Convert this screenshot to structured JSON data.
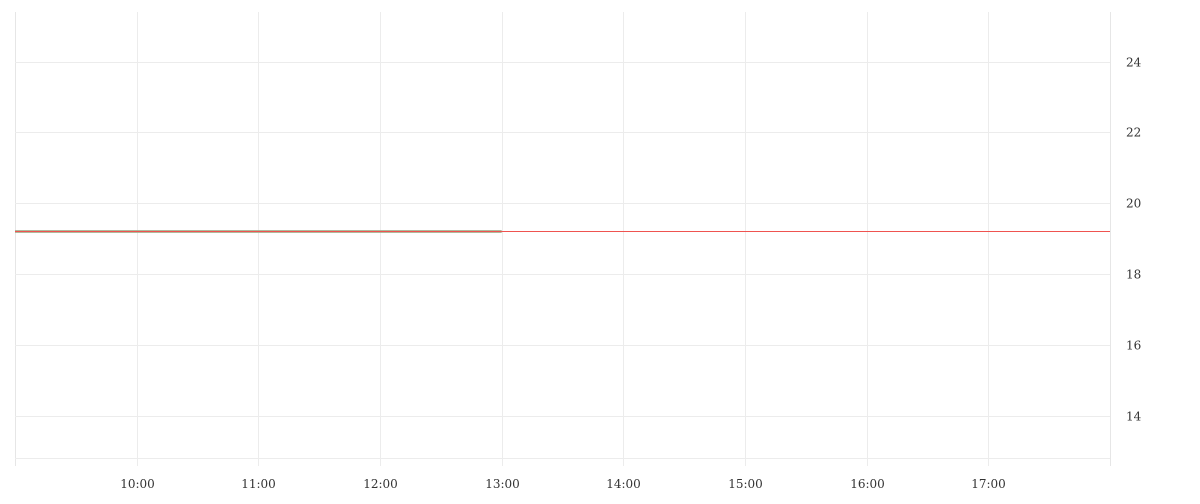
{
  "chart_data": {
    "type": "line",
    "title": "",
    "xlabel": "",
    "ylabel": "",
    "x_ticks": [
      "10:00",
      "11:00",
      "12:00",
      "13:00",
      "14:00",
      "15:00",
      "16:00",
      "17:00"
    ],
    "y_ticks": [
      14,
      16,
      18,
      20,
      22,
      24
    ],
    "xlim": [
      "09:00",
      "18:00"
    ],
    "ylim": [
      12.8,
      25.4
    ],
    "y_axis_position": "right",
    "grid": true,
    "series": [
      {
        "x": [
          "09:00",
          "13:00"
        ],
        "y": [
          19.2,
          19.2
        ],
        "color": "#ef5350",
        "halo_color": "#7fd3a8"
      }
    ],
    "price_line": {
      "value": 19.2,
      "color": "#ef5350"
    }
  }
}
